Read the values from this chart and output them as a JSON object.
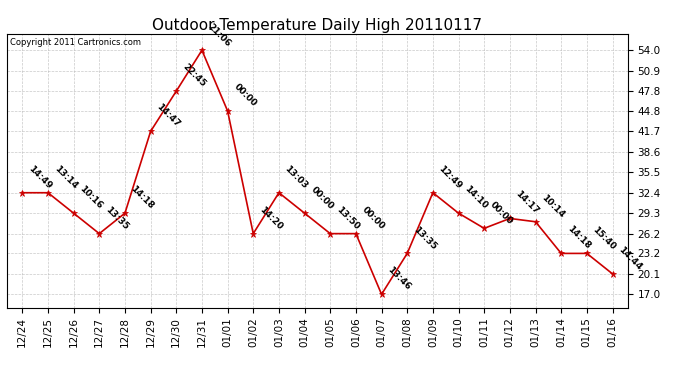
{
  "title": "Outdoor Temperature Daily High 20110117",
  "copyright": "Copyright 2011 Cartronics.com",
  "x_labels": [
    "12/24",
    "12/25",
    "12/26",
    "12/27",
    "12/28",
    "12/29",
    "12/30",
    "12/31",
    "01/01",
    "01/02",
    "01/03",
    "01/04",
    "01/05",
    "01/06",
    "01/07",
    "01/08",
    "01/09",
    "01/10",
    "01/11",
    "01/12",
    "01/13",
    "01/14",
    "01/15",
    "01/16"
  ],
  "y_values": [
    32.4,
    32.4,
    29.3,
    26.2,
    29.3,
    41.7,
    47.8,
    54.0,
    44.8,
    26.2,
    32.4,
    29.3,
    26.2,
    26.2,
    17.0,
    23.2,
    32.4,
    29.3,
    27.0,
    28.5,
    28.0,
    23.2,
    23.2,
    20.1
  ],
  "point_labels": [
    "14:49",
    "13:14",
    "10:16",
    "13:35",
    "14:18",
    "14:47",
    "22:45",
    "21:06",
    "00:00",
    "14:20",
    "13:03",
    "00:00",
    "13:50",
    "00:00",
    "13:46",
    "13:35",
    "12:49",
    "14:10",
    "00:00",
    "14:17",
    "10:14",
    "14:18",
    "15:40",
    "14:44"
  ],
  "y_ticks": [
    17.0,
    20.1,
    23.2,
    26.2,
    29.3,
    32.4,
    35.5,
    38.6,
    41.7,
    44.8,
    47.8,
    50.9,
    54.0
  ],
  "ylim": [
    15.0,
    56.5
  ],
  "xlim": [
    -0.6,
    23.6
  ],
  "line_color": "#cc0000",
  "marker_color": "#cc0000",
  "bg_color": "#ffffff",
  "grid_color": "#bbbbbb",
  "title_fontsize": 11,
  "tick_fontsize": 7.5,
  "point_label_fontsize": 6.5,
  "copyright_fontsize": 6
}
